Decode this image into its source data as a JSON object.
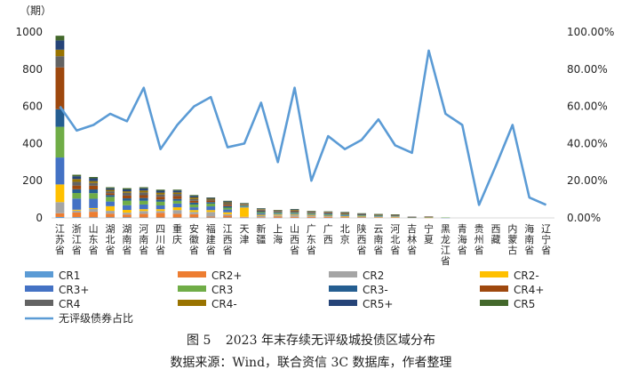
{
  "caption": {
    "figure_label": "图 5",
    "figure_title": "2023 年末存续无评级城投债区域分布",
    "source": "数据来源：Wind，联合资信 3C 数据库，作者整理"
  },
  "chart_data": {
    "type": "bar",
    "stacked": true,
    "title": "",
    "ylabel": "（期）",
    "ylim": [
      0,
      1000
    ],
    "y_ticks": [
      "0",
      "200",
      "400",
      "600",
      "800",
      "1000"
    ],
    "y2lim": [
      0,
      1
    ],
    "y2_ticks": [
      "0.00%",
      "20.00%",
      "40.00%",
      "60.00%",
      "80.00%",
      "100.00%"
    ],
    "grid": false,
    "legend_position": "bottom",
    "categories": [
      "江苏省",
      "浙江省",
      "山东省",
      "湖北省",
      "湖南省",
      "河南省",
      "四川省",
      "重庆",
      "安徽省",
      "福建省",
      "江西省",
      "天津",
      "新疆",
      "上海",
      "山西省",
      "广东省",
      "广西",
      "北京",
      "陕西省",
      "云南省",
      "河北省",
      "吉林省",
      "宁夏",
      "黑龙江省",
      "青海省",
      "贵州省",
      "西藏",
      "内蒙古",
      "海南省",
      "辽宁省"
    ],
    "series": [
      {
        "name": "CR1",
        "color": "#5b9bd5",
        "axis": "left",
        "values": [
          5,
          4,
          3,
          3,
          3,
          2,
          2,
          2,
          2,
          2,
          2,
          1,
          1,
          1,
          1,
          1,
          1,
          0,
          0,
          0,
          0,
          0,
          0,
          0,
          0,
          0,
          0,
          0,
          0,
          0
        ]
      },
      {
        "name": "CR2+",
        "color": "#ed7d31",
        "axis": "left",
        "values": [
          20,
          25,
          30,
          20,
          15,
          20,
          25,
          20,
          18,
          5,
          10,
          3,
          3,
          6,
          5,
          5,
          4,
          3,
          2,
          2,
          2,
          0,
          1,
          0,
          0,
          0,
          0,
          0,
          0,
          0
        ]
      },
      {
        "name": "CR2",
        "color": "#a5a5a5",
        "axis": "left",
        "values": [
          60,
          10,
          15,
          15,
          10,
          15,
          10,
          20,
          12,
          25,
          8,
          2,
          8,
          6,
          8,
          6,
          4,
          4,
          3,
          2,
          2,
          1,
          1,
          0,
          0,
          0,
          0,
          0,
          0,
          0
        ]
      },
      {
        "name": "CR2-",
        "color": "#ffc000",
        "axis": "left",
        "values": [
          95,
          5,
          5,
          25,
          15,
          10,
          10,
          15,
          10,
          10,
          10,
          50,
          5,
          5,
          4,
          4,
          3,
          3,
          3,
          2,
          2,
          1,
          1,
          0,
          0,
          0,
          0,
          0,
          0,
          0
        ]
      },
      {
        "name": "CR3+",
        "color": "#4472c4",
        "axis": "left",
        "values": [
          145,
          60,
          50,
          25,
          25,
          25,
          20,
          20,
          15,
          20,
          15,
          5,
          8,
          5,
          5,
          4,
          4,
          4,
          3,
          3,
          2,
          1,
          1,
          1,
          0,
          0,
          0,
          0,
          0,
          0
        ]
      },
      {
        "name": "CR3",
        "color": "#70ad47",
        "axis": "left",
        "values": [
          165,
          30,
          30,
          25,
          25,
          20,
          20,
          15,
          15,
          15,
          10,
          4,
          6,
          5,
          5,
          4,
          4,
          4,
          3,
          3,
          2,
          1,
          1,
          1,
          0,
          0,
          0,
          0,
          0,
          0
        ]
      },
      {
        "name": "CR3-",
        "color": "#255e91",
        "axis": "left",
        "values": [
          95,
          20,
          20,
          10,
          12,
          15,
          12,
          10,
          10,
          8,
          8,
          3,
          5,
          4,
          4,
          3,
          4,
          3,
          3,
          2,
          2,
          1,
          1,
          0,
          0,
          0,
          0,
          0,
          0,
          0
        ]
      },
      {
        "name": "CR4+",
        "color": "#9e480e",
        "axis": "left",
        "values": [
          225,
          20,
          20,
          10,
          15,
          15,
          15,
          15,
          10,
          8,
          8,
          3,
          4,
          3,
          4,
          3,
          3,
          3,
          2,
          2,
          2,
          1,
          1,
          0,
          0,
          0,
          0,
          0,
          0,
          0
        ]
      },
      {
        "name": "CR4",
        "color": "#636363",
        "axis": "left",
        "values": [
          60,
          20,
          15,
          10,
          15,
          15,
          12,
          12,
          10,
          5,
          8,
          4,
          4,
          3,
          4,
          3,
          3,
          3,
          2,
          2,
          2,
          1,
          1,
          0,
          0,
          0,
          0,
          0,
          0,
          0
        ]
      },
      {
        "name": "CR4-",
        "color": "#997300",
        "axis": "left",
        "values": [
          35,
          15,
          10,
          8,
          8,
          10,
          10,
          8,
          8,
          5,
          5,
          2,
          3,
          2,
          3,
          2,
          2,
          2,
          2,
          1,
          1,
          0,
          0,
          0,
          0,
          0,
          0,
          0,
          0,
          0
        ]
      },
      {
        "name": "CR5+",
        "color": "#264478",
        "axis": "left",
        "values": [
          50,
          15,
          15,
          8,
          10,
          12,
          10,
          10,
          8,
          5,
          5,
          2,
          3,
          2,
          3,
          2,
          2,
          2,
          1,
          1,
          1,
          0,
          0,
          0,
          0,
          0,
          0,
          0,
          0,
          0
        ]
      },
      {
        "name": "CR5",
        "color": "#43682b",
        "axis": "left",
        "values": [
          25,
          8,
          7,
          6,
          7,
          6,
          6,
          5,
          5,
          2,
          3,
          1,
          2,
          1,
          2,
          1,
          1,
          1,
          1,
          1,
          1,
          0,
          0,
          0,
          0,
          0,
          0,
          0,
          0,
          0
        ]
      },
      {
        "name": "无评级债券占比",
        "color": "#5b9bd5",
        "axis": "right",
        "type": "line",
        "values": [
          0.6,
          0.47,
          0.5,
          0.56,
          0.52,
          0.7,
          0.37,
          0.5,
          0.6,
          0.65,
          0.38,
          0.4,
          0.62,
          0.3,
          0.7,
          0.2,
          0.44,
          0.37,
          0.42,
          0.53,
          0.39,
          0.35,
          0.9,
          0.56,
          0.5,
          0.07,
          0.28,
          0.5,
          0.11,
          0.07
        ]
      }
    ]
  }
}
